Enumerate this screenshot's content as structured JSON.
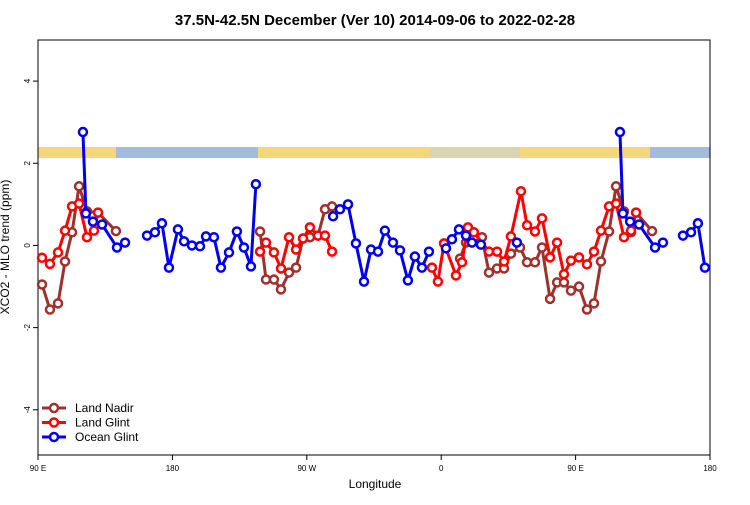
{
  "chart_data": {
    "type": "line",
    "title": "37.5N-42.5N December (Ver 10)   2014-09-06 to 2022-02-28",
    "x_label": "Longitude",
    "y_label": "XCO2 - MLO trend (ppm)",
    "xlim": [
      90,
      540
    ],
    "ylim": [
      -5.1,
      5.0
    ],
    "xticks": [
      {
        "value": 90,
        "label": "90 E"
      },
      {
        "value": 180,
        "label": "180"
      },
      {
        "value": 270,
        "label": "90 W"
      },
      {
        "value": 360,
        "label": "0"
      },
      {
        "value": 450,
        "label": "90 E"
      },
      {
        "value": 540,
        "label": "180"
      }
    ],
    "yticks": [
      -4,
      -2,
      0,
      2,
      4
    ],
    "legend": "bottom-left",
    "series": [
      {
        "name": "Land Nadir",
        "color": "#a0302c",
        "x": [
          92.7,
          98,
          103.4,
          108.1,
          112.8,
          117.5,
          122.8,
          130.2,
          142.2,
          null,
          238.7,
          242.7,
          248,
          252.7,
          258.1,
          262.8,
          267.5,
          272.1,
          277.5,
          282.2,
          286.9,
          null,
          372.6,
          376.6,
          382,
          387.3,
          392,
          397.4,
          402.1,
          406.7,
          412.8,
          417.5,
          422.8,
          427.5,
          432.9,
          437.6,
          442.2,
          446.9,
          452.3,
          457.6,
          462.3,
          467,
          472.4,
          477.1,
          482.4,
          487.1,
          490.5,
          501.2
        ],
        "values": [
          -0.95,
          -1.56,
          -1.41,
          -0.39,
          0.32,
          1.44,
          0.83,
          0.8,
          0.35,
          null,
          0.34,
          -0.83,
          -0.83,
          -1.07,
          -0.66,
          -0.54,
          0.17,
          0.2,
          0.24,
          0.88,
          0.95,
          null,
          -0.32,
          0.07,
          0.2,
          0.2,
          -0.66,
          -0.56,
          -0.56,
          -0.2,
          -0.05,
          -0.41,
          -0.41,
          -0.05,
          -1.3,
          -0.9,
          -0.9,
          -1.1,
          -1.0,
          -1.56,
          -1.41,
          -0.39,
          0.34,
          1.44,
          0.83,
          0.32,
          0.8,
          0.35
        ]
      },
      {
        "name": "Land Glint",
        "color": "#ff0000",
        "x": [
          92.7,
          98,
          103.4,
          108.1,
          112.8,
          117.5,
          122.8,
          127.5,
          130.2,
          null,
          238.7,
          242.7,
          248,
          252.7,
          258.1,
          262.8,
          267.5,
          272.1,
          277.5,
          282.2,
          286.9,
          null,
          353.8,
          357.8,
          361.9,
          369.9,
          373.9,
          377.9,
          381.9,
          392,
          397.4,
          402.1,
          406.7,
          413.4,
          417.5,
          422.8,
          427.5,
          432.9,
          437.6,
          442.2,
          446.9,
          452.3,
          457.6,
          462.3,
          467,
          472.4,
          477.1,
          482.4,
          487.1,
          490.5
        ],
        "values": [
          -0.3,
          -0.45,
          -0.17,
          0.36,
          0.95,
          1.02,
          0.2,
          0.36,
          0.8,
          null,
          -0.15,
          0.07,
          -0.17,
          -0.56,
          0.2,
          -0.1,
          0.17,
          0.44,
          0.24,
          0.24,
          -0.15,
          null,
          -0.54,
          -0.88,
          0.05,
          -0.73,
          -0.41,
          0.44,
          0.32,
          -0.15,
          -0.15,
          -0.39,
          0.22,
          1.32,
          0.49,
          0.34,
          0.66,
          -0.29,
          0.07,
          -0.7,
          -0.37,
          -0.29,
          -0.46,
          -0.15,
          0.36,
          0.95,
          1.02,
          0.2,
          0.36,
          0.8
        ]
      },
      {
        "name": "Ocean Glint",
        "color": "#0000ee",
        "x": [
          120.1,
          122.1,
          126.8,
          132.9,
          142.9,
          148.3,
          null,
          163,
          168.3,
          173,
          177.7,
          183.7,
          187.8,
          193.1,
          198.5,
          202.5,
          207.8,
          212.5,
          217.9,
          223.2,
          227.9,
          232.6,
          235.9,
          null,
          287.6,
          292.2,
          297.6,
          302.9,
          308.3,
          313,
          317.7,
          322.3,
          327.7,
          332.4,
          337.7,
          342.4,
          347.1,
          351.8,
          null,
          363.2,
          367.2,
          371.9,
          376.6,
          380.6,
          386.6,
          null,
          410.7,
          null,
          479.7,
          481.7,
          486.5,
          492.5,
          503.2,
          508.5,
          null,
          521.9,
          527.3,
          531.9,
          536.6
        ],
        "values": [
          2.76,
          0.78,
          0.58,
          0.51,
          -0.05,
          0.07,
          null,
          0.24,
          0.32,
          0.54,
          -0.54,
          0.39,
          0.1,
          0,
          -0.02,
          0.22,
          0.2,
          -0.54,
          -0.17,
          0.34,
          -0.05,
          -0.51,
          1.49,
          null,
          0.71,
          0.88,
          1.0,
          0.05,
          -0.88,
          -0.1,
          -0.15,
          0.36,
          0.07,
          -0.12,
          -0.85,
          -0.27,
          -0.54,
          -0.15,
          null,
          -0.07,
          0.15,
          0.39,
          0.24,
          0.07,
          0.02,
          null,
          0.07,
          null,
          2.76,
          0.78,
          0.58,
          0.51,
          -0.05,
          0.07,
          null,
          0.24,
          0.32,
          0.54,
          -0.54
        ]
      }
    ]
  }
}
